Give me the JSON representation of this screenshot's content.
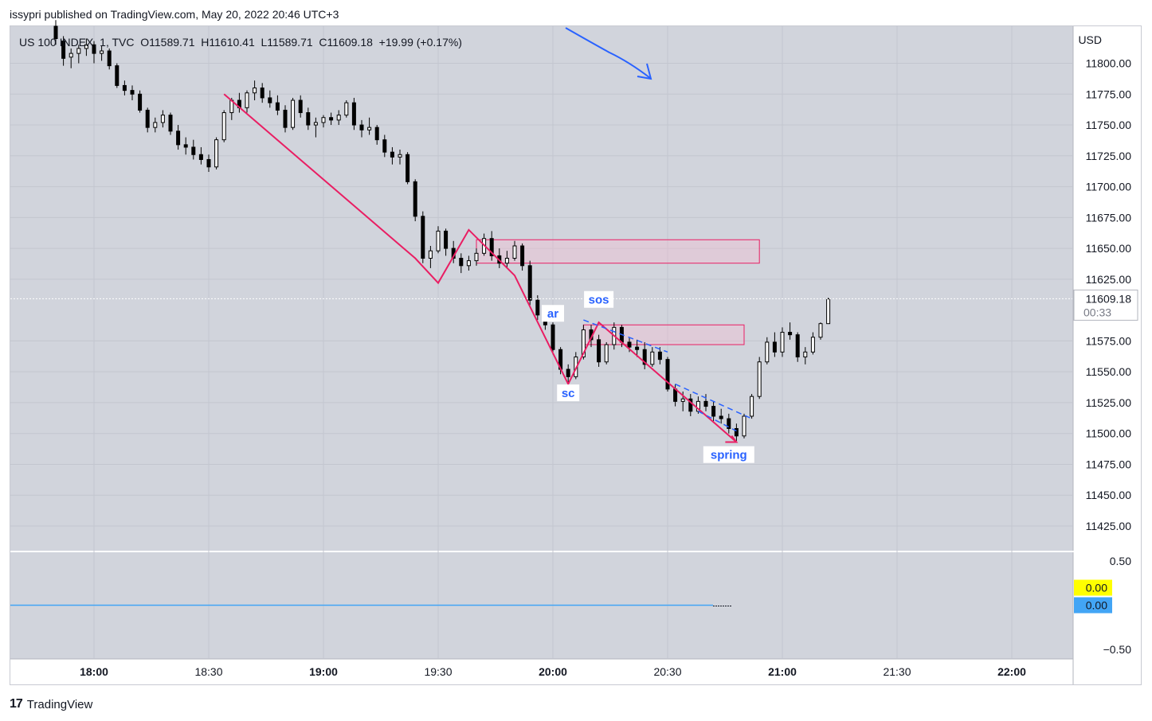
{
  "header": {
    "attribution": "issypri published on TradingView.com, May 20, 2022 20:46 UTC+3"
  },
  "legend": {
    "text": "US 100 INDEX, 1, TVC  O11589.71  H11610.41  L11589.71  C11609.18  +19.99 (+0.17%)"
  },
  "footer": {
    "logo_mark": "17",
    "brand": "TradingView"
  },
  "price_axis": {
    "currency": "USD",
    "ticks": [
      "11800.00",
      "11775.00",
      "11750.00",
      "11725.00",
      "11700.00",
      "11675.00",
      "11650.00",
      "11625.00",
      "11575.00",
      "11550.00",
      "11525.00",
      "11500.00",
      "11475.00",
      "11450.00",
      "11425.00"
    ],
    "last_price": "11609.18",
    "countdown": "00:33"
  },
  "osc_axis": {
    "ticks": [
      "0.50",
      "−0.50"
    ],
    "badge_yellow": "0.00",
    "badge_blue": "0.00"
  },
  "time_axis": {
    "labels": [
      "18:00",
      "18:30",
      "19:00",
      "19:30",
      "20:00",
      "20:30",
      "21:00",
      "21:30",
      "22:00"
    ],
    "bold": [
      true,
      false,
      true,
      false,
      true,
      false,
      true,
      false,
      true
    ]
  },
  "annotations": {
    "ar": "ar",
    "sos": "sos",
    "sc": "sc",
    "spring": "spring"
  },
  "colors": {
    "background": "#d1d4dc",
    "candle": "#000000",
    "wyckoff_line": "#e91e63",
    "annotation_text": "#2962ff",
    "zone_fill": "#f8bbd0",
    "osc_line": "#42a5f5",
    "badge_yellow": "#ffff00",
    "badge_blue": "#42a5f5"
  },
  "chart_data": {
    "type": "candlestick",
    "symbol": "US 100 INDEX",
    "interval": "1",
    "source": "TVC",
    "ylim": [
      11405,
      11830
    ],
    "x_range": [
      "17:40",
      "22:15"
    ],
    "candles": [
      [
        "17:50",
        11830,
        11835,
        11815,
        11820
      ],
      [
        "17:52",
        11818,
        11822,
        11798,
        11804
      ],
      [
        "17:54",
        11805,
        11812,
        11796,
        11808
      ],
      [
        "17:56",
        11808,
        11815,
        11800,
        11812
      ],
      [
        "17:58",
        11812,
        11820,
        11806,
        11815
      ],
      [
        "18:00",
        11815,
        11818,
        11800,
        11808
      ],
      [
        "18:02",
        11808,
        11814,
        11802,
        11810
      ],
      [
        "18:04",
        11810,
        11812,
        11795,
        11798
      ],
      [
        "18:06",
        11798,
        11800,
        11780,
        11782
      ],
      [
        "18:08",
        11782,
        11786,
        11774,
        11778
      ],
      [
        "18:10",
        11778,
        11782,
        11770,
        11775
      ],
      [
        "18:12",
        11775,
        11778,
        11760,
        11762
      ],
      [
        "18:14",
        11762,
        11764,
        11744,
        11748
      ],
      [
        "18:16",
        11748,
        11756,
        11744,
        11752
      ],
      [
        "18:18",
        11752,
        11762,
        11748,
        11758
      ],
      [
        "18:20",
        11758,
        11760,
        11742,
        11745
      ],
      [
        "18:22",
        11745,
        11750,
        11730,
        11734
      ],
      [
        "18:24",
        11734,
        11740,
        11726,
        11732
      ],
      [
        "18:26",
        11732,
        11738,
        11722,
        11726
      ],
      [
        "18:28",
        11726,
        11732,
        11718,
        11722
      ],
      [
        "18:30",
        11722,
        11726,
        11712,
        11716
      ],
      [
        "18:32",
        11716,
        11740,
        11714,
        11738
      ],
      [
        "18:34",
        11738,
        11762,
        11736,
        11760
      ],
      [
        "18:36",
        11760,
        11772,
        11754,
        11770
      ],
      [
        "18:38",
        11770,
        11776,
        11760,
        11764
      ],
      [
        "18:40",
        11764,
        11778,
        11760,
        11776
      ],
      [
        "18:42",
        11776,
        11786,
        11770,
        11780
      ],
      [
        "18:44",
        11780,
        11784,
        11768,
        11772
      ],
      [
        "18:46",
        11772,
        11778,
        11764,
        11768
      ],
      [
        "18:48",
        11768,
        11774,
        11758,
        11762
      ],
      [
        "18:50",
        11762,
        11766,
        11744,
        11748
      ],
      [
        "18:52",
        11748,
        11772,
        11746,
        11770
      ],
      [
        "18:54",
        11770,
        11774,
        11756,
        11760
      ],
      [
        "18:56",
        11760,
        11764,
        11746,
        11750
      ],
      [
        "18:58",
        11750,
        11756,
        11740,
        11752
      ],
      [
        "19:00",
        11752,
        11758,
        11748,
        11756
      ],
      [
        "19:02",
        11756,
        11760,
        11750,
        11754
      ],
      [
        "19:04",
        11754,
        11762,
        11750,
        11758
      ],
      [
        "19:06",
        11758,
        11770,
        11756,
        11768
      ],
      [
        "19:08",
        11768,
        11772,
        11746,
        11750
      ],
      [
        "19:10",
        11750,
        11754,
        11740,
        11746
      ],
      [
        "19:12",
        11746,
        11756,
        11742,
        11748
      ],
      [
        "19:14",
        11748,
        11750,
        11734,
        11738
      ],
      [
        "19:16",
        11738,
        11742,
        11724,
        11728
      ],
      [
        "19:18",
        11728,
        11732,
        11718,
        11724
      ],
      [
        "19:20",
        11724,
        11730,
        11718,
        11726
      ],
      [
        "19:22",
        11726,
        11728,
        11702,
        11704
      ],
      [
        "19:24",
        11704,
        11706,
        11672,
        11676
      ],
      [
        "19:26",
        11676,
        11680,
        11638,
        11642
      ],
      [
        "19:28",
        11642,
        11652,
        11634,
        11648
      ],
      [
        "19:30",
        11648,
        11668,
        11646,
        11664
      ],
      [
        "19:32",
        11664,
        11666,
        11644,
        11650
      ],
      [
        "19:34",
        11650,
        11656,
        11638,
        11642
      ],
      [
        "19:36",
        11642,
        11646,
        11630,
        11636
      ],
      [
        "19:38",
        11636,
        11644,
        11632,
        11640
      ],
      [
        "19:40",
        11640,
        11650,
        11636,
        11646
      ],
      [
        "19:42",
        11646,
        11662,
        11644,
        11658
      ],
      [
        "19:44",
        11658,
        11664,
        11640,
        11644
      ],
      [
        "19:46",
        11644,
        11650,
        11634,
        11638
      ],
      [
        "19:48",
        11638,
        11648,
        11634,
        11642
      ],
      [
        "19:50",
        11642,
        11656,
        11640,
        11652
      ],
      [
        "19:52",
        11652,
        11654,
        11632,
        11636
      ],
      [
        "19:54",
        11636,
        11640,
        11604,
        11608
      ],
      [
        "19:56",
        11608,
        11612,
        11592,
        11596
      ],
      [
        "19:58",
        11596,
        11600,
        11584,
        11588
      ],
      [
        "20:00",
        11588,
        11590,
        11564,
        11568
      ],
      [
        "20:02",
        11568,
        11570,
        11548,
        11552
      ],
      [
        "20:04",
        11552,
        11556,
        11540,
        11546
      ],
      [
        "20:06",
        11546,
        11566,
        11544,
        11562
      ],
      [
        "20:08",
        11562,
        11588,
        11560,
        11584
      ],
      [
        "20:10",
        11584,
        11588,
        11570,
        11576
      ],
      [
        "20:12",
        11576,
        11580,
        11554,
        11558
      ],
      [
        "20:14",
        11558,
        11574,
        11556,
        11572
      ],
      [
        "20:16",
        11572,
        11590,
        11568,
        11586
      ],
      [
        "20:18",
        11586,
        11588,
        11570,
        11574
      ],
      [
        "20:20",
        11574,
        11578,
        11566,
        11570
      ],
      [
        "20:22",
        11570,
        11576,
        11562,
        11568
      ],
      [
        "20:24",
        11568,
        11574,
        11552,
        11556
      ],
      [
        "20:26",
        11556,
        11570,
        11554,
        11566
      ],
      [
        "20:28",
        11566,
        11570,
        11556,
        11560
      ],
      [
        "20:30",
        11560,
        11562,
        11534,
        11536
      ],
      [
        "20:32",
        11536,
        11540,
        11522,
        11526
      ],
      [
        "20:34",
        11526,
        11534,
        11518,
        11528
      ],
      [
        "20:36",
        11528,
        11532,
        11514,
        11518
      ],
      [
        "20:38",
        11518,
        11530,
        11516,
        11526
      ],
      [
        "20:40",
        11526,
        11532,
        11518,
        11522
      ],
      [
        "20:42",
        11522,
        11526,
        11510,
        11514
      ],
      [
        "20:44",
        11514,
        11520,
        11508,
        11512
      ],
      [
        "20:46",
        11512,
        11516,
        11500,
        11504
      ],
      [
        "20:48",
        11504,
        11508,
        11494,
        11498
      ],
      [
        "20:50",
        11498,
        11516,
        11496,
        11514
      ],
      [
        "20:52",
        11514,
        11532,
        11512,
        11530
      ],
      [
        "20:54",
        11530,
        11562,
        11528,
        11558
      ],
      [
        "20:56",
        11558,
        11578,
        11556,
        11574
      ],
      [
        "20:58",
        11574,
        11582,
        11562,
        11566
      ],
      [
        "21:00",
        11566,
        11586,
        11562,
        11582
      ],
      [
        "21:02",
        11582,
        11590,
        11576,
        11580
      ],
      [
        "21:04",
        11580,
        11582,
        11558,
        11562
      ],
      [
        "21:06",
        11562,
        11570,
        11556,
        11566
      ],
      [
        "21:08",
        11566,
        11582,
        11564,
        11578
      ],
      [
        "21:10",
        11578,
        11590,
        11576,
        11589
      ],
      [
        "21:12",
        11589,
        11610,
        11589,
        11609
      ]
    ],
    "wyckoff_path": [
      [
        "18:34",
        11775
      ],
      [
        "19:24",
        11642
      ],
      [
        "19:30",
        11622
      ],
      [
        "19:38",
        11665
      ],
      [
        "19:50",
        11628
      ],
      [
        "20:04",
        11540
      ],
      [
        "20:12",
        11590
      ],
      [
        "20:48",
        11493
      ]
    ],
    "zones": [
      {
        "from": "19:40",
        "to": "20:54",
        "low": 11638,
        "high": 11657
      },
      {
        "from": "20:08",
        "to": "20:50",
        "low": 11572,
        "high": 11588
      }
    ],
    "oscillator": {
      "value": 0.0,
      "ylim": [
        -0.6,
        0.6
      ]
    }
  }
}
